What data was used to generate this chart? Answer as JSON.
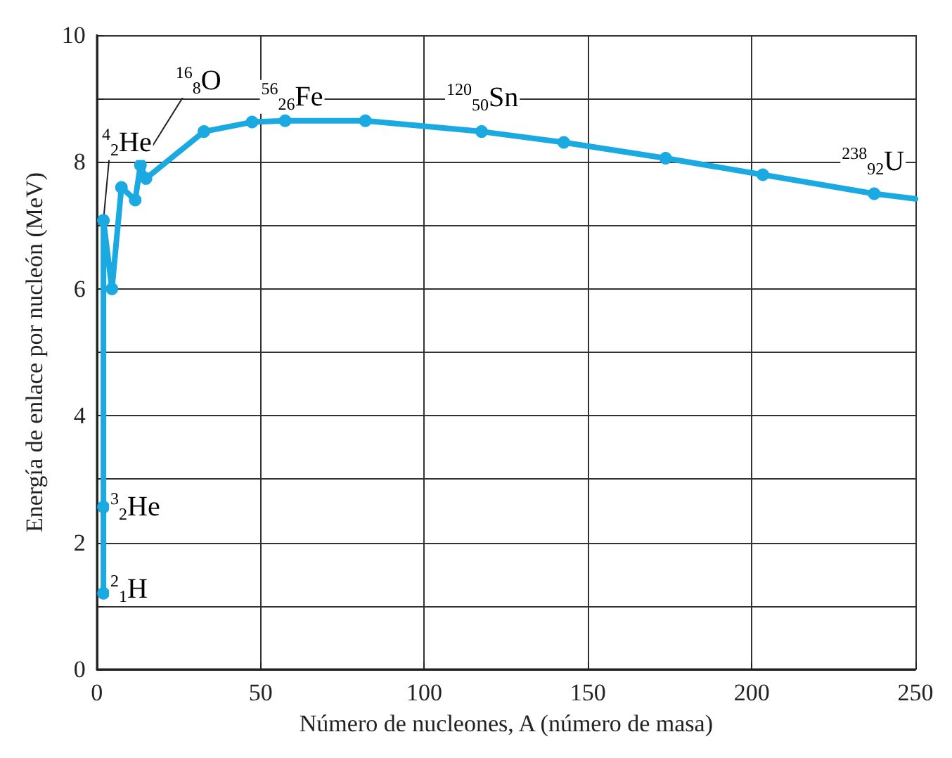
{
  "chart_data": {
    "type": "line",
    "xlabel": "Número de nucleones, A (número de masa)",
    "ylabel": "Energía de enlace por nucleón (MeV)",
    "xlim": [
      0,
      250
    ],
    "xticks": [
      0,
      50,
      100,
      150,
      200,
      250
    ],
    "ylim": [
      0,
      10
    ],
    "yticks": [
      0,
      {
        "value": 1,
        "label": null
      },
      2,
      {
        "value": 3,
        "label": null
      },
      4,
      {
        "value": 5,
        "label": null
      },
      6,
      {
        "value": 7,
        "label": null
      },
      8,
      {
        "value": 9,
        "label": null
      },
      10
    ],
    "grid": true,
    "marker": "circle",
    "line_style": "solid",
    "series": [
      {
        "color": "#1ba9e1",
        "x": [
          2,
          2,
          2,
          4.6,
          7.5,
          11.7,
          13.3,
          15,
          32.7,
          47.4,
          57.5,
          82,
          117.5,
          142.6,
          173.7,
          203.4,
          237.4
        ],
        "values": [
          1.2,
          2.56,
          7.08,
          6.0,
          7.6,
          7.4,
          7.95,
          7.74,
          8.48,
          8.63,
          8.65,
          8.65,
          8.48,
          8.31,
          8.06,
          7.8,
          7.5
        ]
      },
      {
        "color": "#1ba9e1",
        "marker": "none",
        "x": [
          237.4,
          250
        ],
        "values": [
          7.5,
          7.42
        ]
      }
    ],
    "annotations": [
      {
        "text": "$^{2}$$_{1}$H",
        "x": 2,
        "y": 1.2
      },
      {
        "text": "$^{3}$$_{2}$He",
        "x": 2,
        "y": 2.56
      },
      {
        "text": "$^{4}$$_{2}$He",
        "x": 2,
        "y": 7.08
      },
      {
        "text": "$^{16}$$_{8}$O",
        "x": 13.3,
        "y": 7.95
      },
      {
        "text": "$^{56}$$_{26}$Fe",
        "x": 57.5,
        "y": 8.65
      },
      {
        "text": "$^{120}$$_{50}$Sn",
        "x": 117.5,
        "y": 8.48
      },
      {
        "text": "$^{238}$$_{92}$U",
        "x": 237.4,
        "y": 7.5
      }
    ]
  }
}
